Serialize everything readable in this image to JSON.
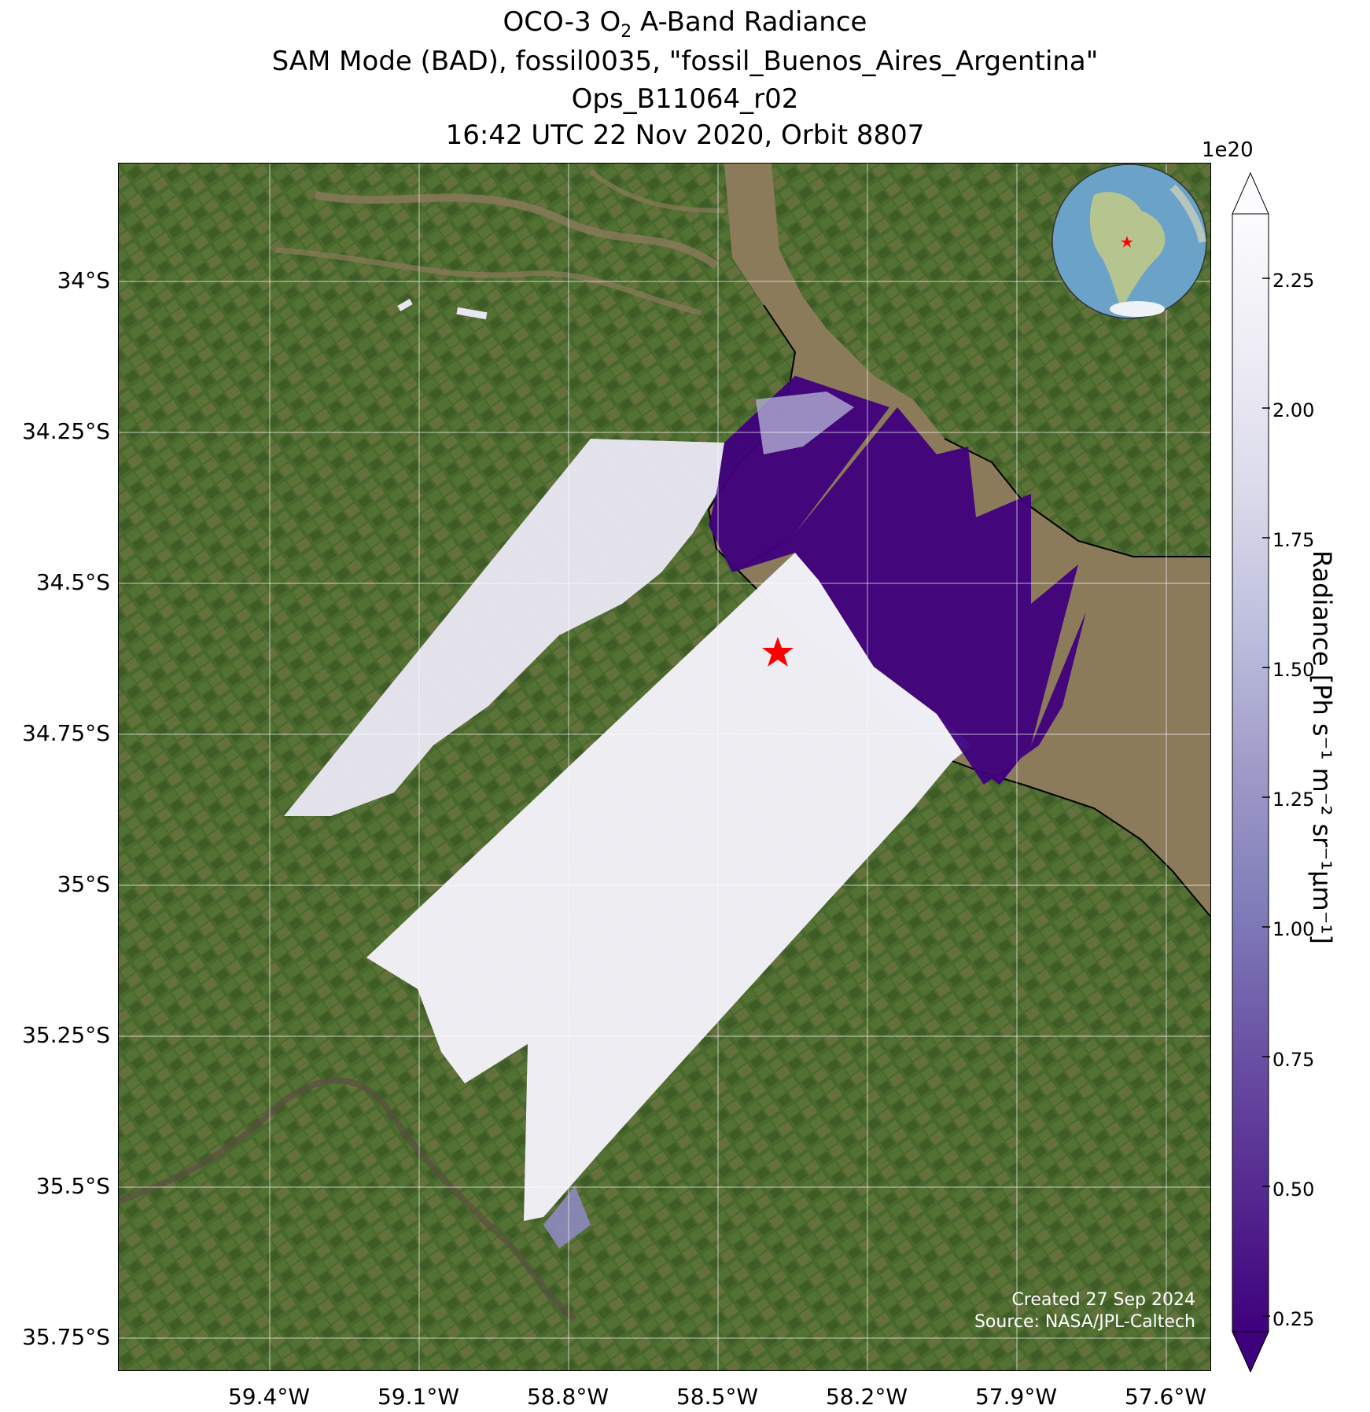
{
  "title": {
    "line1_pre": "OCO-3 O",
    "line1_sub": "2",
    "line1_post": " A-Band Radiance",
    "line2": "SAM Mode (BAD), fossil0035, \"fossil_Buenos_Aires_Argentina\"",
    "line3": "Ops_B11064_r02",
    "line4": "16:42 UTC 22 Nov 2020, Orbit 8807"
  },
  "axes": {
    "lat_ticks": [
      "34°S",
      "34.25°S",
      "34.5°S",
      "34.75°S",
      "35°S",
      "35.25°S",
      "35.5°S",
      "35.75°S"
    ],
    "lon_ticks": [
      "59.4°W",
      "59.1°W",
      "58.8°W",
      "58.5°W",
      "58.2°W",
      "57.9°W",
      "57.6°W"
    ],
    "lat_range": [
      -35.8,
      -33.8
    ],
    "lon_range": [
      -59.7,
      -57.53
    ],
    "grid": true
  },
  "colorbar": {
    "multiplier": "1e20",
    "label": "Radiance [Ph s⁻¹ m⁻² sr⁻¹μm⁻¹]",
    "ticks": [
      "0.25",
      "0.50",
      "0.75",
      "1.00",
      "1.25",
      "1.50",
      "1.75",
      "2.00",
      "2.25"
    ],
    "range": [
      0.25,
      2.4
    ],
    "extend": "both",
    "colormap": "Purples_r",
    "colors": [
      "#3f007d",
      "#54278f",
      "#6a51a3",
      "#807dba",
      "#9e9ac8",
      "#bcbddc",
      "#dadaeb",
      "#efedf5",
      "#fcfbfd"
    ]
  },
  "target": {
    "name": "fossil_Buenos_Aires_Argentina",
    "marker": "red-star",
    "lat": -34.61,
    "lon": -58.37
  },
  "inset": {
    "type": "globe",
    "marker": "red-star"
  },
  "credits": {
    "created": "Created 27 Sep 2024",
    "source": "Source: NASA/JPL-Caltech"
  },
  "colors": {
    "land": "#4e6b2e",
    "water": "#8b7b5b",
    "target": "#ff0000"
  }
}
